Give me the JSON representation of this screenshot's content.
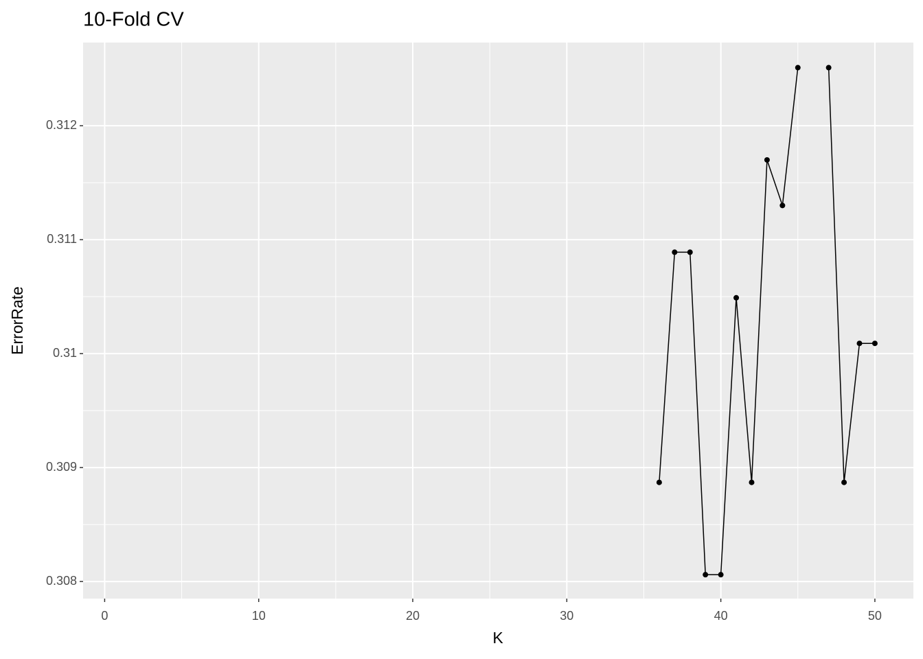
{
  "chart_data": {
    "type": "line",
    "title": "10-Fold CV",
    "x_label": "K",
    "y_label": "ErrorRate",
    "x": [
      36,
      37,
      38,
      39,
      40,
      41,
      42,
      43,
      44,
      45,
      46,
      47,
      48,
      49,
      50
    ],
    "series": [
      {
        "name": "ErrorRate",
        "color": "#000000",
        "values": [
          0.30887,
          0.31089,
          0.31089,
          0.30806,
          0.30806,
          0.31049,
          0.30887,
          0.3117,
          0.3113,
          0.31251,
          null,
          0.31251,
          0.30887,
          0.31009,
          0.31009
        ]
      }
    ],
    "markers": true,
    "xlim": [
      -1.4,
      52.5
    ],
    "ylim": [
      0.30785,
      0.31273
    ],
    "xticks": [
      0,
      10,
      20,
      30,
      40,
      50
    ],
    "yticks": [
      0.308,
      0.309,
      0.31,
      0.311,
      0.312
    ],
    "grid": true,
    "minor_grid": true,
    "panel_color": "#ebebeb"
  }
}
